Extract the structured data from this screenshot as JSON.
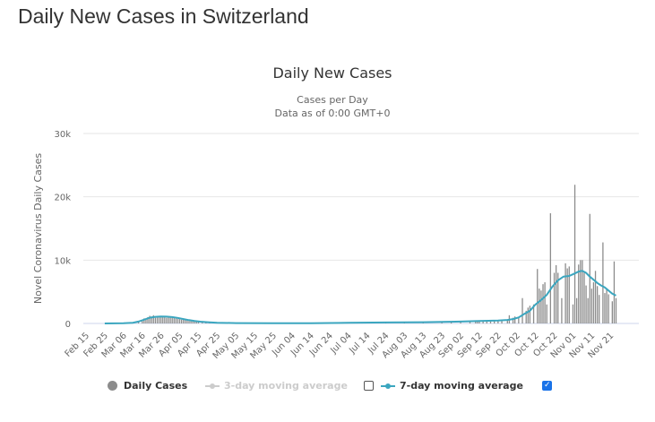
{
  "page": {
    "title": "Daily New Cases in Switzerland"
  },
  "chart_data": {
    "type": "bar",
    "title": "Daily New Cases",
    "subtitle_lines": [
      "Cases per Day",
      "Data as of 0:00 GMT+0"
    ],
    "xlabel": "",
    "ylabel": "Novel Coronavirus Daily Cases",
    "ylim": [
      0,
      30000
    ],
    "y_ticks": [
      0,
      10000,
      20000,
      30000
    ],
    "y_tick_labels": [
      "0",
      "10k",
      "20k",
      "30k"
    ],
    "grid": true,
    "x_start_date": "2020-02-15",
    "x_tick_labels": [
      "Feb 15",
      "Feb 25",
      "Mar 06",
      "Mar 16",
      "Mar 26",
      "Apr 05",
      "Apr 15",
      "Apr 25",
      "May 05",
      "May 15",
      "May 25",
      "Jun 04",
      "Jun 14",
      "Jun 24",
      "Jul 04",
      "Jul 14",
      "Jul 24",
      "Aug 03",
      "Aug 13",
      "Aug 23",
      "Sep 02",
      "Sep 12",
      "Sep 22",
      "Oct 02",
      "Oct 12",
      "Oct 22",
      "Nov 01",
      "Nov 11",
      "Nov 21"
    ],
    "x_tick_interval_days": 10,
    "legend_position": "bottom",
    "series": [
      {
        "name": "Daily Cases",
        "type": "bar",
        "color": "#8c8c8c",
        "visible": true,
        "points_day_value": [
          [
            10,
            0
          ],
          [
            15,
            10
          ],
          [
            20,
            40
          ],
          [
            25,
            150
          ],
          [
            28,
            300
          ],
          [
            30,
            500
          ],
          [
            31,
            800
          ],
          [
            32,
            600
          ],
          [
            33,
            1000
          ],
          [
            34,
            1200
          ],
          [
            35,
            1100
          ],
          [
            36,
            1300
          ],
          [
            37,
            900
          ],
          [
            38,
            1000
          ],
          [
            39,
            1200
          ],
          [
            40,
            1100
          ],
          [
            41,
            1200
          ],
          [
            42,
            1000
          ],
          [
            43,
            900
          ],
          [
            44,
            1100
          ],
          [
            45,
            1000
          ],
          [
            46,
            900
          ],
          [
            47,
            1000
          ],
          [
            48,
            800
          ],
          [
            49,
            900
          ],
          [
            50,
            700
          ],
          [
            51,
            600
          ],
          [
            52,
            700
          ],
          [
            53,
            500
          ],
          [
            54,
            600
          ],
          [
            55,
            400
          ],
          [
            56,
            450
          ],
          [
            57,
            350
          ],
          [
            58,
            300
          ],
          [
            59,
            320
          ],
          [
            60,
            250
          ],
          [
            62,
            200
          ],
          [
            64,
            180
          ],
          [
            66,
            150
          ],
          [
            68,
            120
          ],
          [
            70,
            100
          ],
          [
            75,
            60
          ],
          [
            80,
            40
          ],
          [
            90,
            20
          ],
          [
            100,
            20
          ],
          [
            110,
            20
          ],
          [
            120,
            30
          ],
          [
            130,
            60
          ],
          [
            140,
            100
          ],
          [
            150,
            130
          ],
          [
            160,
            150
          ],
          [
            170,
            180
          ],
          [
            180,
            200
          ],
          [
            190,
            250
          ],
          [
            195,
            300
          ],
          [
            200,
            350
          ],
          [
            205,
            400
          ],
          [
            208,
            500
          ],
          [
            209,
            380
          ],
          [
            210,
            450
          ],
          [
            212,
            300
          ],
          [
            214,
            500
          ],
          [
            216,
            480
          ],
          [
            218,
            550
          ],
          [
            220,
            420
          ],
          [
            222,
            520
          ],
          [
            225,
            600
          ],
          [
            226,
            1300
          ],
          [
            228,
            900
          ],
          [
            229,
            1100
          ],
          [
            231,
            1000
          ],
          [
            233,
            4000
          ],
          [
            235,
            2000
          ],
          [
            236,
            2500
          ],
          [
            237,
            2800
          ],
          [
            239,
            3000
          ],
          [
            241,
            8600
          ],
          [
            242,
            5500
          ],
          [
            243,
            5200
          ],
          [
            244,
            6200
          ],
          [
            245,
            6500
          ],
          [
            246,
            3000
          ],
          [
            248,
            17400
          ],
          [
            250,
            8000
          ],
          [
            251,
            9200
          ],
          [
            252,
            8000
          ],
          [
            254,
            4000
          ],
          [
            256,
            9500
          ],
          [
            257,
            8700
          ],
          [
            258,
            9000
          ],
          [
            260,
            3000
          ],
          [
            261,
            21900
          ],
          [
            262,
            4000
          ],
          [
            263,
            9300
          ],
          [
            264,
            10000
          ],
          [
            265,
            10000
          ],
          [
            266,
            8000
          ],
          [
            267,
            6000
          ],
          [
            268,
            4000
          ],
          [
            269,
            17300
          ],
          [
            270,
            5500
          ],
          [
            271,
            6500
          ],
          [
            272,
            8300
          ],
          [
            273,
            5900
          ],
          [
            274,
            4500
          ],
          [
            276,
            12800
          ],
          [
            277,
            4800
          ],
          [
            278,
            5400
          ],
          [
            279,
            4600
          ],
          [
            281,
            3500
          ],
          [
            282,
            9800
          ],
          [
            283,
            4000
          ]
        ]
      },
      {
        "name": "3-day moving average",
        "type": "line",
        "color": "#cccccc",
        "visible": false,
        "checked": false
      },
      {
        "name": "7-day moving average",
        "type": "line",
        "color": "#3ba6bf",
        "visible": true,
        "checked": true,
        "points_day_value": [
          [
            10,
            0
          ],
          [
            20,
            30
          ],
          [
            25,
            120
          ],
          [
            28,
            300
          ],
          [
            31,
            600
          ],
          [
            34,
            900
          ],
          [
            37,
            1050
          ],
          [
            40,
            1100
          ],
          [
            43,
            1080
          ],
          [
            46,
            1000
          ],
          [
            49,
            880
          ],
          [
            52,
            700
          ],
          [
            55,
            520
          ],
          [
            58,
            380
          ],
          [
            61,
            280
          ],
          [
            65,
            200
          ],
          [
            70,
            120
          ],
          [
            80,
            60
          ],
          [
            100,
            25
          ],
          [
            120,
            40
          ],
          [
            140,
            100
          ],
          [
            160,
            150
          ],
          [
            180,
            200
          ],
          [
            200,
            300
          ],
          [
            210,
            400
          ],
          [
            220,
            450
          ],
          [
            225,
            550
          ],
          [
            228,
            700
          ],
          [
            231,
            950
          ],
          [
            234,
            1500
          ],
          [
            237,
            2000
          ],
          [
            240,
            3000
          ],
          [
            243,
            3700
          ],
          [
            246,
            4500
          ],
          [
            249,
            5800
          ],
          [
            252,
            6800
          ],
          [
            255,
            7400
          ],
          [
            258,
            7500
          ],
          [
            261,
            7900
          ],
          [
            263,
            8200
          ],
          [
            265,
            8300
          ],
          [
            267,
            8000
          ],
          [
            269,
            7400
          ],
          [
            271,
            6900
          ],
          [
            273,
            6400
          ],
          [
            275,
            6000
          ],
          [
            277,
            5700
          ],
          [
            279,
            5200
          ],
          [
            281,
            4700
          ],
          [
            283,
            4400
          ]
        ]
      }
    ]
  },
  "legend": {
    "items": [
      {
        "label": "Daily Cases",
        "color": "#8c8c8c",
        "active": true
      },
      {
        "label": "3-day moving average",
        "color": "#cccccc",
        "active": false,
        "checkbox_checked": false
      },
      {
        "label": "7-day moving average",
        "color": "#3ba6bf",
        "active": true,
        "checkbox_checked": true
      }
    ]
  }
}
